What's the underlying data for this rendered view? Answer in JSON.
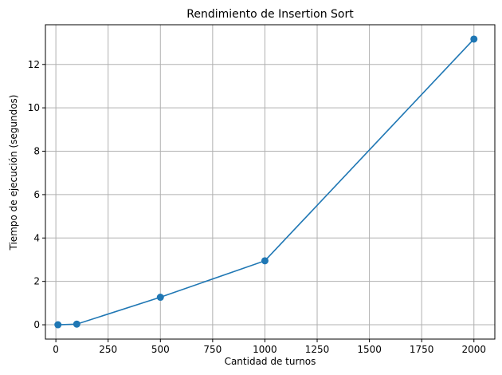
{
  "chart_data": {
    "type": "line",
    "title": "Rendimiento de Insertion Sort",
    "xlabel": "Cantidad de turnos",
    "ylabel": "Tiempo de ejecución (segundos)",
    "xlim": [
      -50,
      2100
    ],
    "ylim": [
      -0.66,
      13.83
    ],
    "xticks": [
      0,
      250,
      500,
      750,
      1000,
      1250,
      1500,
      1750,
      2000
    ],
    "yticks": [
      0,
      2,
      4,
      6,
      8,
      10,
      12
    ],
    "grid": true,
    "series": [
      {
        "color": "#1f77b4",
        "marker": "circle",
        "x": [
          10,
          100,
          500,
          1000,
          2000
        ],
        "y": [
          0.0,
          0.03,
          1.27,
          2.95,
          13.17
        ]
      }
    ]
  }
}
